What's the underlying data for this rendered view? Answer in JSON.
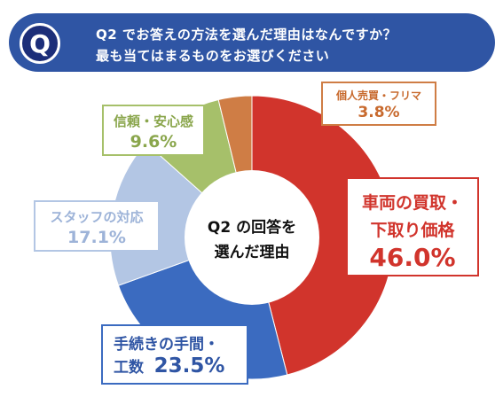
{
  "header": {
    "badge": "Q",
    "line1": "Q2 でお答えの方法を選んだ理由はなんですか？",
    "line2": "最も当てはまるものをお選びください"
  },
  "center": {
    "line1": "Q2 の回答を",
    "line2": "選んだ理由"
  },
  "labels": {
    "trade": {
      "line1": "車両の買取・",
      "line2": "下取り価格",
      "pct": "46.0%"
    },
    "procedure": {
      "line1": "手続きの手間・",
      "line2_prefix": "工数",
      "pct": "23.5%"
    },
    "staff": {
      "name": "スタッフの対応",
      "pct": "17.1%"
    },
    "trust": {
      "name": "信頼・安心感",
      "pct": "9.6%"
    },
    "personal": {
      "name": "個人売買・フリマ",
      "pct": "3.8%"
    }
  },
  "chart_data": {
    "type": "pie",
    "title": "",
    "donut": true,
    "categories": [
      "車両の買取・下取り価格",
      "手続きの手間・工数",
      "スタッフの対応",
      "信頼・安心感",
      "個人売買・フリマ"
    ],
    "values": [
      46.0,
      23.5,
      17.1,
      9.6,
      3.8
    ],
    "colors": [
      "#D1342C",
      "#3B6BC0",
      "#B3C6E4",
      "#A6C06A",
      "#CF7D45"
    ],
    "start": "12 o'clock, clockwise"
  }
}
